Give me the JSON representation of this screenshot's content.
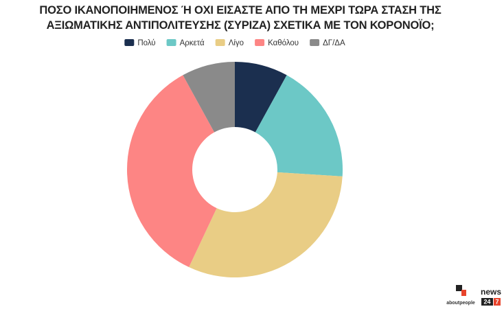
{
  "chart_data": {
    "type": "donut",
    "title": "ΠΟΣΟ ΙΚΑΝΟΠΟΙΗΜΕΝΟΣ Ή ΟΧΙ ΕΙΣΑΣΤΕ ΑΠΟ ΤΗ ΜΕΧΡΙ ΤΩΡΑ ΣΤΑΣΗ ΤΗΣ ΑΞΙΩΜΑΤΙΚΗΣ ΑΝΤΙΠΟΛΙΤΕΥΣΗΣ (ΣΥΡΙΖΑ) ΣΧΕΤΙΚΑ ΜΕ ΤΟΝ ΚΟΡΟΝΟΪΟ;",
    "categories": [
      "Πολύ",
      "Αρκετά",
      "Λίγο",
      "Καθόλου",
      "ΔΓ/ΔΑ"
    ],
    "values": [
      8,
      18,
      31,
      35,
      8
    ],
    "colors": [
      "#1b2f4f",
      "#6cc8c6",
      "#e9cd85",
      "#fd8584",
      "#8a8a8a"
    ],
    "legend": "top"
  },
  "logos": {
    "brand": "aboutpeople",
    "site": "news",
    "number_a": "24",
    "number_b": "7"
  }
}
